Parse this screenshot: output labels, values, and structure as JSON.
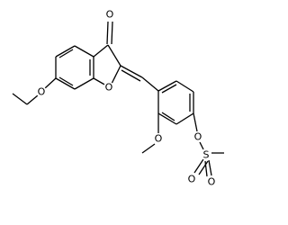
{
  "atoms": [
    "O",
    "O",
    "O",
    "O",
    "O",
    "S",
    "O",
    "O"
  ]
}
